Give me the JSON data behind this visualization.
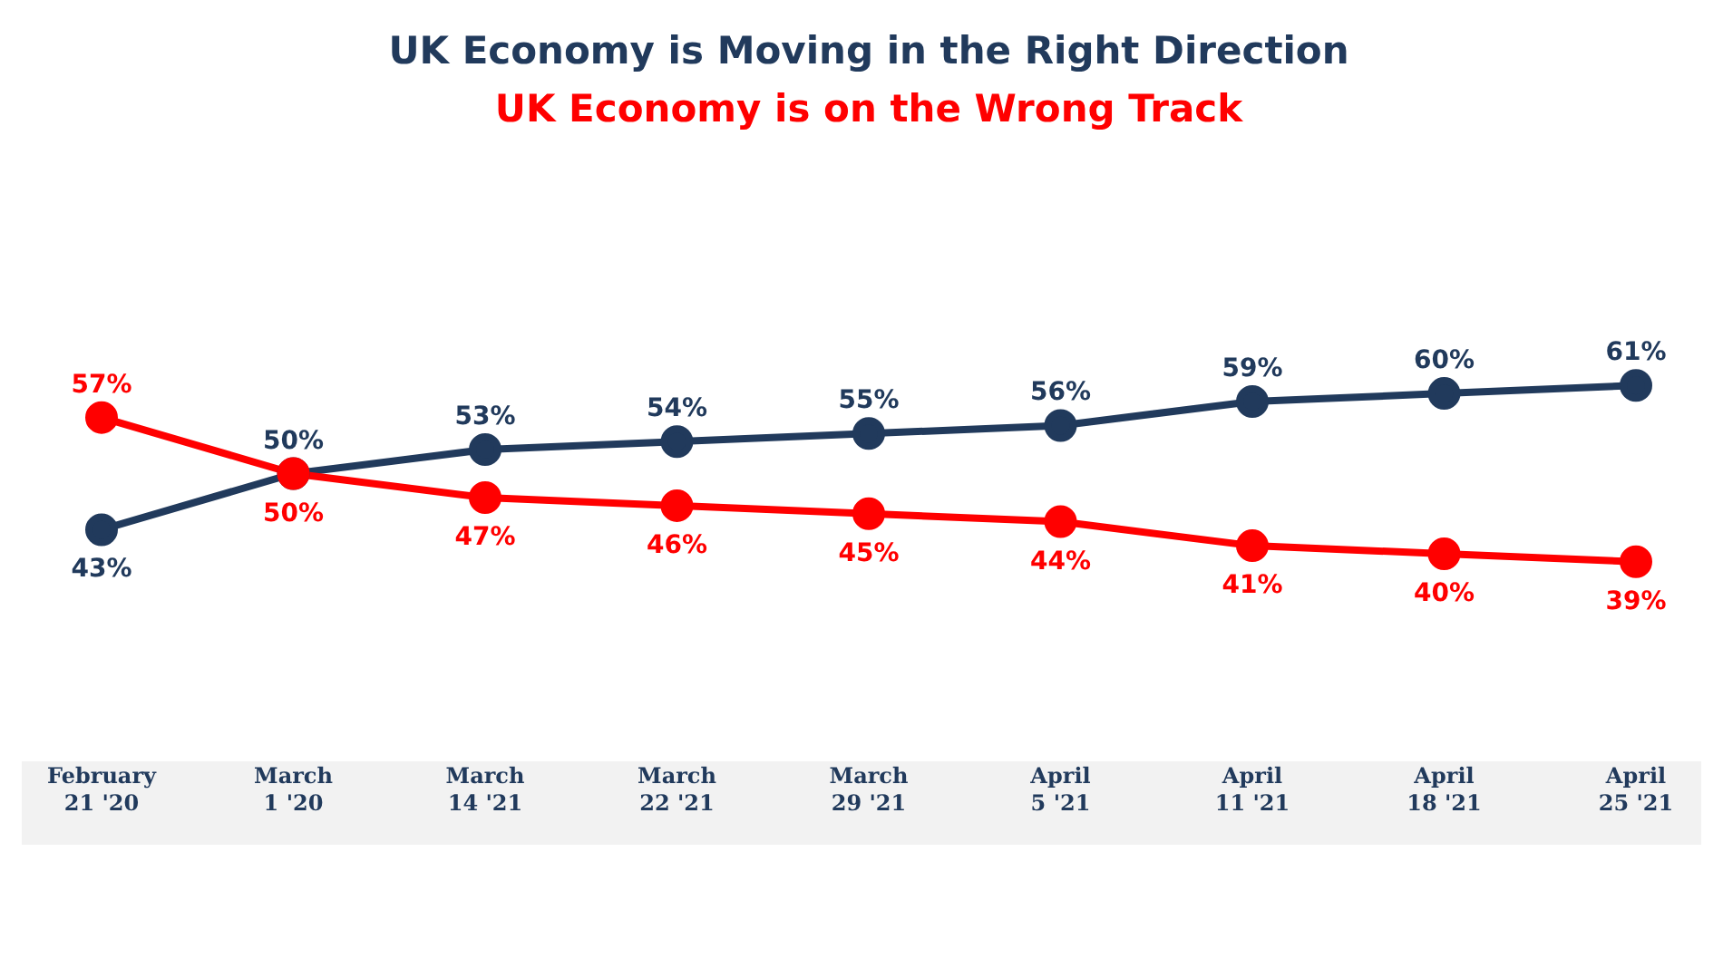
{
  "chart_data": {
    "type": "line",
    "categories": [
      "February 21 '20",
      "March 1 '20",
      "March 14 '21",
      "March 22 '21",
      "March 29 '21",
      "April 5 '21",
      "April 11 '21",
      "April 18 '21",
      "April 25 '21"
    ],
    "series": [
      {
        "name": "UK Economy is Moving in the Right Direction",
        "color": "#213a5c",
        "values": [
          43,
          50,
          53,
          54,
          55,
          56,
          59,
          60,
          61
        ],
        "value_labels": [
          "43%",
          "50%",
          "53%",
          "54%",
          "55%",
          "56%",
          "59%",
          "60%",
          "61%"
        ]
      },
      {
        "name": "UK Economy is on the Wrong Track",
        "color": "#ff0000",
        "values": [
          57,
          50,
          47,
          46,
          45,
          44,
          41,
          40,
          39
        ],
        "value_labels": [
          "57%",
          "50%",
          "47%",
          "46%",
          "45%",
          "44%",
          "41%",
          "40%",
          "39%"
        ]
      }
    ],
    "legend": "top",
    "marker": "circle",
    "line_style": "solid",
    "tick_labels": "x"
  }
}
